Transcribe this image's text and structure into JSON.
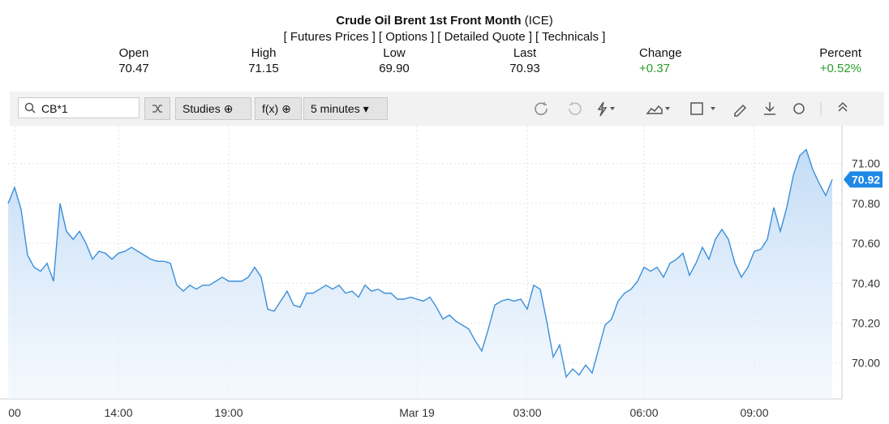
{
  "header": {
    "title": "Crude Oil Brent 1st Front Month",
    "exchange": "(ICE)",
    "links": [
      "[ Futures Prices ]",
      "[ Options ]",
      "[ Detailed Quote ]",
      "[ Technicals ]"
    ],
    "stats": [
      {
        "label": "Open",
        "value": "70.47"
      },
      {
        "label": "High",
        "value": "71.15"
      },
      {
        "label": "Low",
        "value": "69.90"
      },
      {
        "label": "Last",
        "value": "70.93"
      },
      {
        "label": "Change",
        "value": "+0.37"
      },
      {
        "label": "Percent",
        "value": "+0.52%"
      }
    ]
  },
  "toolbar": {
    "symbol": "CB*1",
    "studies": "Studies",
    "function": "f(x)",
    "interval": "5 minutes"
  },
  "chart_data": {
    "type": "line",
    "color": "#3b8fd9",
    "categories": [
      null,
      "00",
      null,
      null,
      null,
      null,
      null,
      null,
      null,
      null,
      null,
      null,
      null,
      null,
      null,
      null,
      null,
      "14:00",
      null,
      null,
      null,
      null,
      null,
      null,
      null,
      null,
      null,
      null,
      null,
      null,
      null,
      null,
      null,
      null,
      "19:00",
      null,
      null,
      null,
      null,
      null,
      null,
      null,
      null,
      null,
      null,
      null,
      null,
      null,
      null,
      null,
      null,
      null,
      null,
      null,
      null,
      null,
      null,
      null,
      null,
      null,
      null,
      null,
      null,
      "Mar 19",
      null,
      null,
      null,
      null,
      null,
      null,
      null,
      null,
      null,
      null,
      null,
      null,
      null,
      null,
      null,
      null,
      "03:00",
      null,
      null,
      null,
      null,
      null,
      null,
      null,
      null,
      null,
      null,
      null,
      null,
      null,
      null,
      null,
      null,
      null,
      "06:00",
      null,
      null,
      null,
      null,
      null,
      null,
      null,
      null,
      null,
      null,
      null,
      null,
      null,
      null,
      null,
      null,
      "09:00",
      null,
      null,
      null,
      null,
      null,
      null,
      null,
      null,
      null,
      null,
      null,
      null
    ],
    "values": [
      70.8,
      70.88,
      70.77,
      70.54,
      70.48,
      70.46,
      70.5,
      70.41,
      70.8,
      70.66,
      70.62,
      70.66,
      70.6,
      70.52,
      70.56,
      70.55,
      70.52,
      70.55,
      70.56,
      70.58,
      70.56,
      70.54,
      70.52,
      70.51,
      70.51,
      70.5,
      70.39,
      70.36,
      70.39,
      70.37,
      70.39,
      70.39,
      70.41,
      70.43,
      70.41,
      70.41,
      70.41,
      70.43,
      70.48,
      70.43,
      70.27,
      70.26,
      70.31,
      70.36,
      70.29,
      70.28,
      70.35,
      70.35,
      70.37,
      70.39,
      70.37,
      70.39,
      70.35,
      70.36,
      70.33,
      70.39,
      70.36,
      70.37,
      70.35,
      70.35,
      70.32,
      70.32,
      70.33,
      70.32,
      70.31,
      70.33,
      70.28,
      70.22,
      70.24,
      70.21,
      70.19,
      70.17,
      70.11,
      70.06,
      70.17,
      70.29,
      70.31,
      70.32,
      70.31,
      70.32,
      70.27,
      70.39,
      70.37,
      70.21,
      70.03,
      70.09,
      69.93,
      69.97,
      69.94,
      69.99,
      69.95,
      70.07,
      70.19,
      70.22,
      70.31,
      70.35,
      70.37,
      70.41,
      70.48,
      70.46,
      70.48,
      70.43,
      70.5,
      70.52,
      70.55,
      70.44,
      70.5,
      70.58,
      70.52,
      70.62,
      70.67,
      70.62,
      70.5,
      70.43,
      70.48,
      70.56,
      70.57,
      70.62,
      70.78,
      70.66,
      70.78,
      70.94,
      71.04,
      71.07,
      70.97,
      70.9,
      70.84,
      70.92
    ],
    "ylim": [
      69.82,
      71.19
    ],
    "yticks": [
      {
        "value": 70,
        "label": "70.00"
      },
      {
        "value": 70.2,
        "label": "70.20"
      },
      {
        "value": 70.4,
        "label": "70.40"
      },
      {
        "value": 70.6,
        "label": "70.60"
      },
      {
        "value": 70.8,
        "label": "70.80"
      },
      {
        "value": 71,
        "label": "71.00"
      }
    ],
    "last_price": {
      "value": 70.92,
      "label": "70.92"
    },
    "grid": true
  }
}
